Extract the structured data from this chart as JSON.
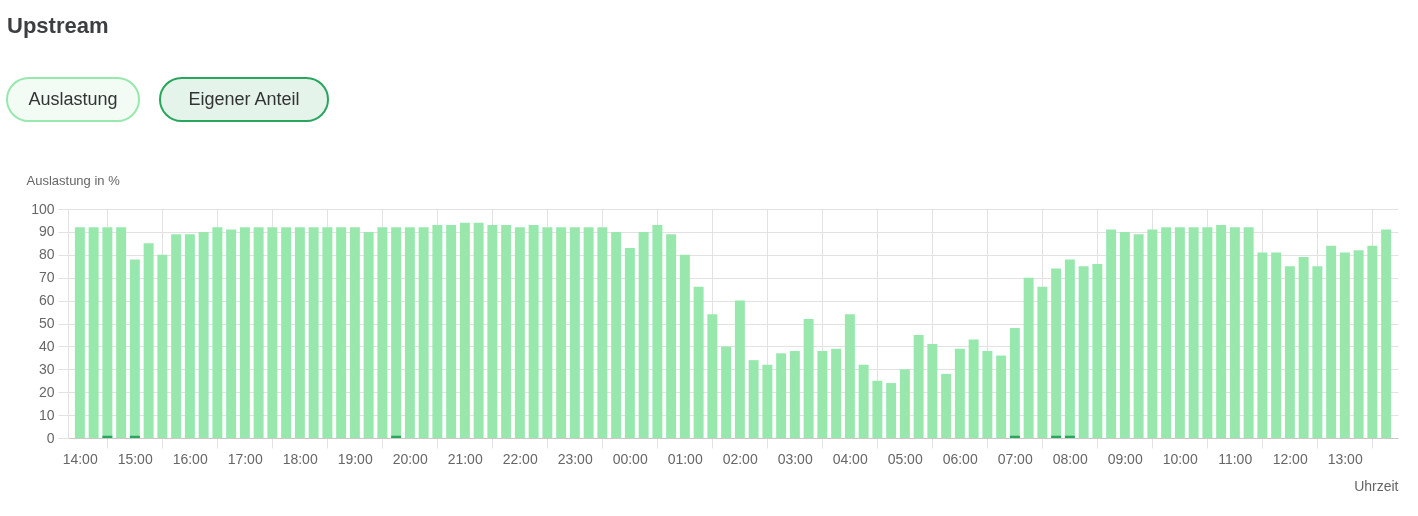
{
  "chart_data": {
    "type": "bar",
    "title": "Upstream",
    "ylabel": "Auslastung in %",
    "xlabel": "Uhrzeit",
    "categories": [
      "14:00",
      null,
      null,
      null,
      "15:00",
      null,
      null,
      null,
      "16:00",
      null,
      null,
      null,
      "17:00",
      null,
      null,
      null,
      "18:00",
      null,
      null,
      null,
      "19:00",
      null,
      null,
      null,
      "20:00",
      null,
      null,
      null,
      "21:00",
      null,
      null,
      null,
      "22:00",
      null,
      null,
      null,
      "23:00",
      null,
      null,
      null,
      "00:00",
      null,
      null,
      null,
      "01:00",
      null,
      null,
      null,
      "02:00",
      null,
      null,
      null,
      "03:00",
      null,
      null,
      null,
      "04:00",
      null,
      null,
      null,
      "05:00",
      null,
      null,
      null,
      "06:00",
      null,
      null,
      null,
      "07:00",
      null,
      null,
      null,
      "08:00",
      null,
      null,
      null,
      "09:00",
      null,
      null,
      null,
      "10:00",
      null,
      null,
      null,
      "11:00",
      null,
      null,
      null,
      "12:00",
      null,
      null,
      null,
      "13:00",
      null,
      null,
      null
    ],
    "series": [
      {
        "name": "Auslastung",
        "color": "#98e8ae",
        "values": [
          92,
          92,
          92,
          92,
          78,
          85,
          80,
          89,
          89,
          90,
          92,
          91,
          92,
          92,
          92,
          92,
          92,
          92,
          92,
          92,
          92,
          90,
          92,
          92,
          92,
          92,
          93,
          93,
          94,
          94,
          93,
          93,
          92,
          93,
          92,
          92,
          92,
          92,
          92,
          90,
          83,
          90,
          93,
          89,
          80,
          66,
          54,
          40,
          60,
          34,
          32,
          37,
          38,
          52,
          38,
          39,
          54,
          32,
          25,
          24,
          30,
          45,
          41,
          28,
          39,
          43,
          38,
          36,
          48,
          70,
          66,
          74,
          78,
          75,
          76,
          91,
          90,
          89,
          91,
          92,
          92,
          92,
          92,
          93,
          92,
          92,
          81,
          81,
          75,
          79,
          75,
          84,
          81,
          82,
          84,
          91
        ]
      },
      {
        "name": "Eigener Anteil",
        "color": "#2aa55e",
        "values": [
          null,
          null,
          1,
          null,
          1,
          null,
          null,
          null,
          null,
          null,
          null,
          null,
          null,
          null,
          null,
          null,
          null,
          null,
          null,
          null,
          null,
          null,
          null,
          1,
          null,
          null,
          null,
          null,
          null,
          null,
          null,
          null,
          null,
          null,
          null,
          null,
          null,
          null,
          null,
          null,
          null,
          null,
          null,
          null,
          null,
          null,
          null,
          null,
          null,
          null,
          null,
          null,
          null,
          null,
          null,
          null,
          null,
          null,
          null,
          null,
          null,
          null,
          null,
          null,
          null,
          null,
          null,
          null,
          1,
          null,
          null,
          1,
          1,
          null,
          null,
          null,
          null,
          null,
          null,
          null,
          null,
          null,
          null,
          null,
          null,
          null,
          null,
          null,
          null,
          null,
          null,
          null,
          null,
          null,
          null,
          null
        ]
      }
    ],
    "ylim": [
      0,
      100
    ],
    "yticks": [
      0,
      10,
      20,
      30,
      40,
      50,
      60,
      70,
      80,
      90,
      100
    ],
    "grid": true,
    "legend": "top left"
  }
}
